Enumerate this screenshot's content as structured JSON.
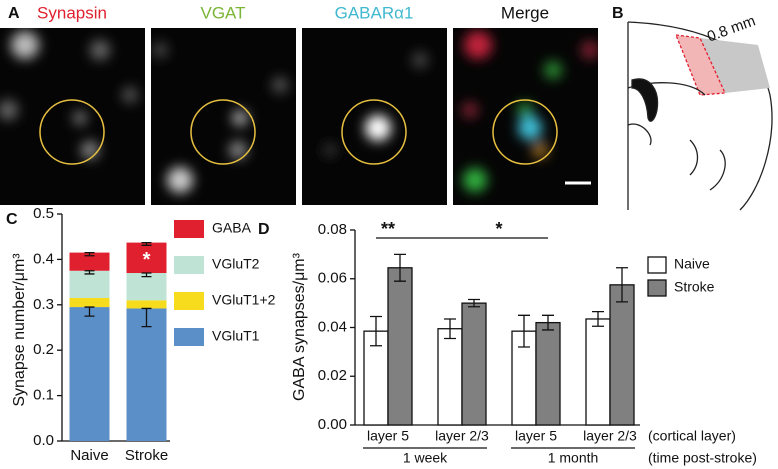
{
  "panels": {
    "a": {
      "label": "A",
      "titles": [
        "Synapsin",
        "VGAT",
        "GABARα1",
        "Merge"
      ]
    },
    "b": {
      "label": "B",
      "scale": "0.8 mm"
    },
    "c": {
      "label": "C"
    },
    "d": {
      "label": "D"
    }
  },
  "chart_data": [
    {
      "type": "bar",
      "stacked": true,
      "ylabel": "Synapse number/μm³",
      "categories": [
        "Naive",
        "Stroke"
      ],
      "series": [
        {
          "name": "VGluT1",
          "color": "#5b8fc7",
          "values": [
            0.295,
            0.292
          ],
          "errors": [
            0.02,
            0.04
          ]
        },
        {
          "name": "VGluT1+2",
          "color": "#f7dc1e",
          "values": [
            0.02,
            0.018
          ]
        },
        {
          "name": "VGluT2",
          "color": "#bfe3d4",
          "values": [
            0.06,
            0.06
          ],
          "errors": [
            0.007,
            0.008
          ]
        },
        {
          "name": "GABA",
          "color": "#e0202f",
          "values": [
            0.04,
            0.067
          ],
          "errors": [
            0.007,
            0.006
          ]
        }
      ],
      "annotations": [
        "*"
      ],
      "ylim": [
        0,
        0.5
      ],
      "yticks": [
        {
          "value": 0,
          "label": "0.0"
        },
        0.1,
        0.2,
        0.3,
        0.4,
        0.5
      ]
    },
    {
      "type": "bar",
      "stacked": false,
      "ylabel": "GABA synapses/μm³",
      "categories": [
        "layer 5",
        "layer 2/3",
        "layer 5",
        "layer 2/3"
      ],
      "groups": [
        "1 week",
        "1 month"
      ],
      "row_labels": [
        "(cortical layer)",
        "(time post-stroke)"
      ],
      "series": [
        {
          "name": "Naive",
          "color": "#ffffff",
          "values": [
            0.0385,
            0.0395,
            0.0385,
            0.0435
          ],
          "errors": [
            0.006,
            0.004,
            0.0065,
            0.003
          ]
        },
        {
          "name": "Stroke",
          "color": "#808080",
          "values": [
            0.0645,
            0.05,
            0.042,
            0.0575
          ],
          "errors": [
            0.0055,
            0.0015,
            0.003,
            0.007
          ]
        }
      ],
      "annotations": [
        "**",
        "*"
      ],
      "ylim": [
        0,
        0.08
      ],
      "yticks": [
        {
          "value": 0,
          "label": "0.00"
        },
        {
          "value": 0.02,
          "label": "0.02"
        },
        {
          "value": 0.04,
          "label": "0.04"
        },
        {
          "value": 0.06,
          "label": "0.06"
        },
        {
          "value": 0.08,
          "label": "0.08"
        }
      ]
    }
  ]
}
